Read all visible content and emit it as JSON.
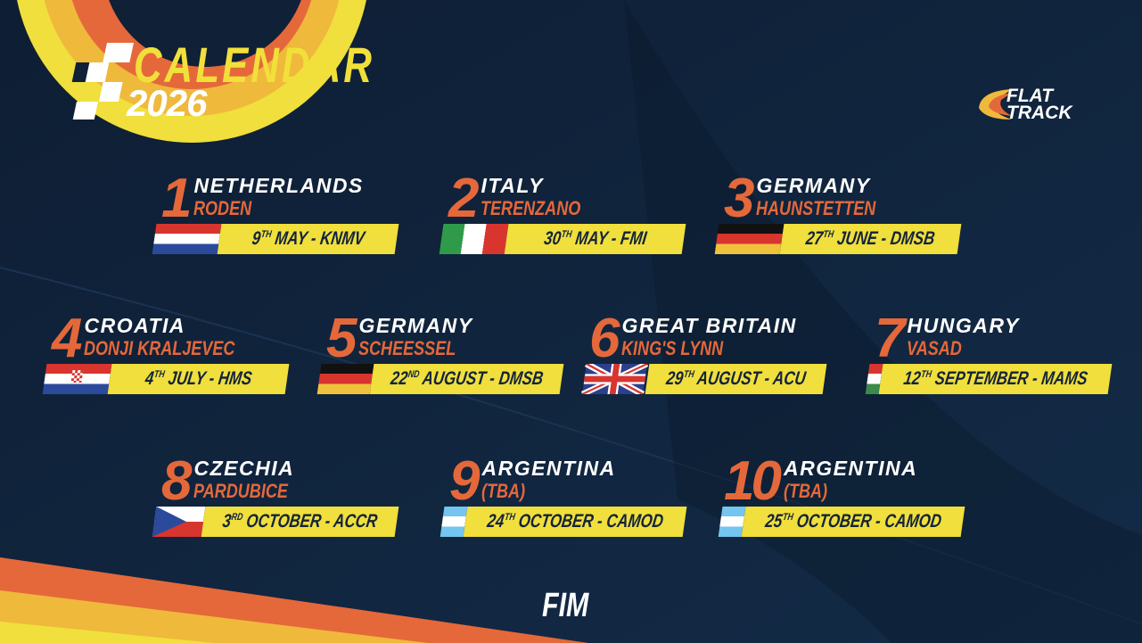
{
  "header": {
    "title": "CALENDAR",
    "year": "2026"
  },
  "logos": {
    "series": "FLAT TRACK",
    "series_line1": "FLAT",
    "series_line2": "TRACK",
    "federation": "FIM"
  },
  "colors": {
    "background": "#0f2037",
    "accent_orange": "#e5683a",
    "accent_yellow": "#f0df3c",
    "text": "#ffffff"
  },
  "events": [
    {
      "round": "1",
      "country": "NETHERLANDS",
      "city": "RODEN",
      "day": "9",
      "suffix": "TH",
      "rest": "MAY - KNMV",
      "flag": "netherlands"
    },
    {
      "round": "2",
      "country": "ITALY",
      "city": "TERENZANO",
      "day": "30",
      "suffix": "TH",
      "rest": "MAY - FMI",
      "flag": "italy"
    },
    {
      "round": "3",
      "country": "GERMANY",
      "city": "HAUNSTETTEN",
      "day": "27",
      "suffix": "TH",
      "rest": "JUNE - DMSB",
      "flag": "germany"
    },
    {
      "round": "4",
      "country": "CROATIA",
      "city": "DONJI KRALJEVEC",
      "day": "4",
      "suffix": "TH",
      "rest": "JULY - HMS",
      "flag": "croatia"
    },
    {
      "round": "5",
      "country": "GERMANY",
      "city": "SCHEESSEL",
      "day": "22",
      "suffix": "ND",
      "rest": "AUGUST - DMSB",
      "flag": "germany"
    },
    {
      "round": "6",
      "country": "GREAT BRITAIN",
      "city": "KING'S LYNN",
      "day": "29",
      "suffix": "TH",
      "rest": "AUGUST - ACU",
      "flag": "great-britain"
    },
    {
      "round": "7",
      "country": "HUNGARY",
      "city": "VASAD",
      "day": "12",
      "suffix": "TH",
      "rest": "SEPTEMBER - MAMS",
      "flag": "hungary"
    },
    {
      "round": "8",
      "country": "CZECHIA",
      "city": "PARDUBICE",
      "day": "3",
      "suffix": "RD",
      "rest": "OCTOBER - ACCR",
      "flag": "czechia"
    },
    {
      "round": "9",
      "country": "ARGENTINA",
      "city": "(TBA)",
      "day": "24",
      "suffix": "TH",
      "rest": "OCTOBER - CAMOD",
      "flag": "argentina"
    },
    {
      "round": "10",
      "country": "ARGENTINA",
      "city": "(TBA)",
      "day": "25",
      "suffix": "TH",
      "rest": "OCTOBER - CAMOD",
      "flag": "argentina"
    }
  ]
}
